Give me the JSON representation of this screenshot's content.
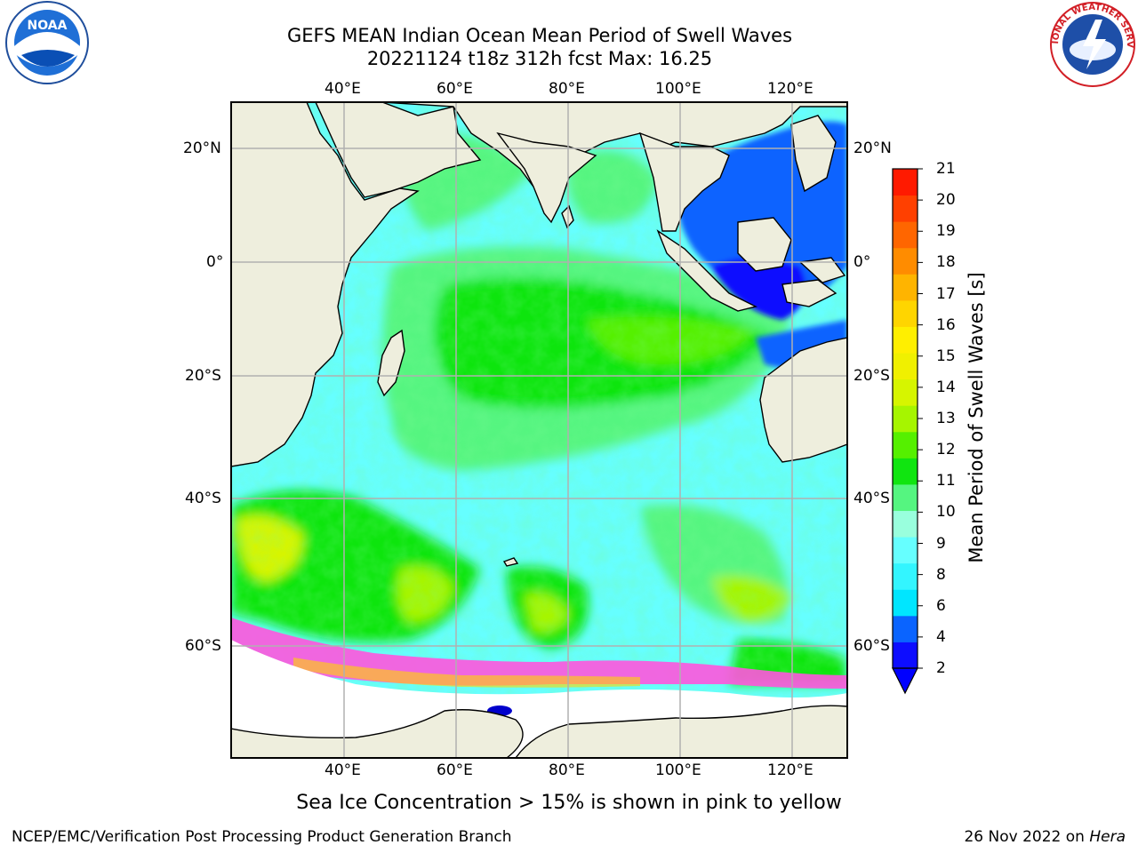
{
  "header": {
    "title_line1": "GEFS MEAN Indian Ocean Mean Period of Swell Waves",
    "title_line2": "20221124 t18z 312h fcst   Max: 16.25"
  },
  "logos": {
    "left": {
      "icon": "noaa-logo",
      "text": "NOAA"
    },
    "right": {
      "icon": "nws-logo",
      "text": "NATIONAL WEATHER SERVICE"
    }
  },
  "map": {
    "lon_labels": [
      "40°E",
      "60°E",
      "80°E",
      "100°E",
      "120°E"
    ],
    "lat_labels": [
      "20°N",
      "0°",
      "20°S",
      "40°S",
      "60°S"
    ],
    "extent": {
      "lon": [
        20,
        130
      ],
      "lat": [
        -75,
        28
      ]
    },
    "colors": {
      "land": "#eeeedd",
      "ice": "#ffffff",
      "grid": "#b0b0b0",
      "frame": "#000000"
    }
  },
  "colorbar": {
    "label": "Mean Period of Swell Waves [s]",
    "ticks": [
      "21",
      "20",
      "19",
      "18",
      "17",
      "16",
      "15",
      "14",
      "13",
      "12",
      "11",
      "10",
      "9",
      "8",
      "6",
      "4",
      "2"
    ],
    "bands": [
      "#0d0dff",
      "#0a64ff",
      "#00e6ff",
      "#33f5ff",
      "#66ffff",
      "#99ffdd",
      "#55f580",
      "#10e510",
      "#55f000",
      "#a6f500",
      "#d6f500",
      "#f0f000",
      "#ffef00",
      "#ffd500",
      "#ffb400",
      "#ff8c00",
      "#ff6600",
      "#ff4000",
      "#ff1a00"
    ],
    "under_color": "#0000ff"
  },
  "caption": "Sea Ice Concentration > 15% is shown in pink to yellow",
  "footer": {
    "credit": "NCEP/EMC/Verification Post Processing Product Generation Branch",
    "date_prefix": "26 Nov 2022 on ",
    "date_host": "Hera"
  }
}
